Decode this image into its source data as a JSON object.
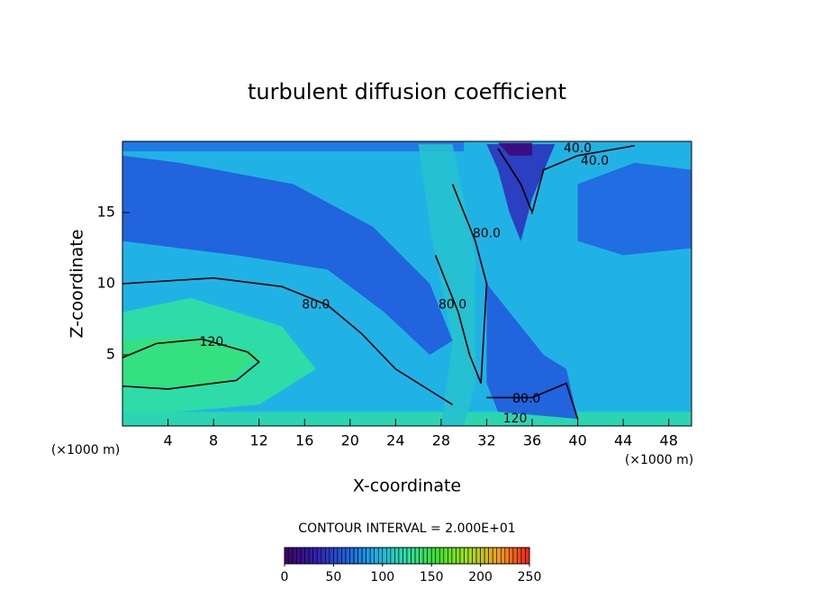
{
  "chart_data": {
    "type": "contour",
    "title": "turbulent diffusion coefficient",
    "x_label": "X-coordinate",
    "y_label": "Z-coordinate",
    "x_unit": "(×1000 m)",
    "footer": "CONTOUR INTERVAL = 2.000E+01",
    "xlim": [
      0,
      50
    ],
    "ylim": [
      0,
      20
    ],
    "xticks": [
      4,
      8,
      12,
      16,
      20,
      24,
      28,
      32,
      36,
      40,
      44,
      48
    ],
    "yticks": [
      5,
      10,
      15
    ],
    "background_value": 95,
    "filled": [
      {
        "value": 60,
        "x": [
          0,
          0,
          10,
          18,
          23,
          27,
          29,
          27,
          22,
          15,
          5,
          0
        ],
        "z": [
          19,
          13,
          12,
          11,
          8,
          5,
          6,
          10,
          14,
          17,
          18.5,
          19
        ]
      },
      {
        "value": 70,
        "x": [
          0,
          0,
          30,
          30
        ],
        "z": [
          20,
          19.3,
          19.3,
          20
        ]
      },
      {
        "value": 65,
        "x": [
          40,
          44,
          50,
          50,
          45,
          40
        ],
        "z": [
          13,
          12,
          12.5,
          18,
          18.5,
          17
        ]
      },
      {
        "value": 120,
        "x": [
          0,
          0,
          50,
          50
        ],
        "z": [
          0,
          1,
          1,
          0
        ]
      },
      {
        "value": 125,
        "x": [
          0,
          0,
          6,
          14,
          17,
          12,
          5,
          0
        ],
        "z": [
          1,
          8,
          9,
          7,
          4,
          1.5,
          1,
          1
        ]
      },
      {
        "value": 135,
        "x": [
          0,
          0,
          6,
          12,
          9,
          3,
          0
        ],
        "z": [
          3,
          6,
          6.3,
          5,
          3,
          2.7,
          3
        ]
      },
      {
        "value": 105,
        "x": [
          26,
          29,
          31,
          31,
          30,
          28,
          29,
          27,
          26
        ],
        "z": [
          19.8,
          19.8,
          12,
          3,
          0,
          0,
          6,
          14,
          19.8
        ]
      },
      {
        "value": 60,
        "x": [
          32,
          34,
          37,
          39,
          40,
          33,
          32
        ],
        "z": [
          10,
          8,
          5,
          4,
          0.5,
          1,
          3
        ]
      },
      {
        "value": 40,
        "x": [
          32,
          38,
          36,
          35,
          34,
          33,
          32
        ],
        "z": [
          19.8,
          19.8,
          16,
          13,
          15,
          18,
          19.8
        ]
      },
      {
        "value": 10,
        "x": [
          33,
          36,
          36,
          34,
          33
        ],
        "z": [
          19.9,
          19.9,
          19,
          19,
          19.9
        ]
      }
    ],
    "contours": [
      {
        "level": 120,
        "x": [
          0,
          3,
          7,
          11,
          12,
          10,
          4,
          0
        ],
        "z": [
          4.8,
          5.8,
          6.1,
          5.2,
          4.5,
          3.2,
          2.6,
          2.8
        ],
        "labels": [
          {
            "text": "120.",
            "x": 8,
            "z": 5.9
          }
        ]
      },
      {
        "level": 80,
        "x": [
          0,
          8,
          14,
          18,
          21,
          24,
          27,
          29
        ],
        "z": [
          10,
          10.4,
          9.8,
          8.5,
          6.5,
          4,
          2.5,
          1.5
        ],
        "labels": [
          {
            "text": "80.0",
            "x": 17,
            "z": 8.5
          }
        ]
      },
      {
        "level": 80,
        "x": [
          27.5,
          28.5,
          29.5,
          30.5,
          31.5,
          32,
          31,
          30,
          29
        ],
        "z": [
          12,
          10,
          8,
          5,
          3,
          10,
          13,
          15,
          17
        ],
        "labels": [
          {
            "text": "80.0",
            "x": 29,
            "z": 8.5
          },
          {
            "text": "80.0",
            "x": 32,
            "z": 13.5
          }
        ]
      },
      {
        "level": 80,
        "x": [
          32,
          34,
          36,
          39,
          40
        ],
        "z": [
          2,
          2,
          2,
          3,
          0.5
        ],
        "labels": [
          {
            "text": "80.0",
            "x": 35.5,
            "z": 1.9
          },
          {
            "text": "120",
            "x": 34.5,
            "z": 0.5
          }
        ]
      },
      {
        "level": 40,
        "x": [
          33,
          35,
          36,
          37,
          40,
          45
        ],
        "z": [
          19.5,
          17,
          15,
          18,
          19,
          19.7
        ],
        "labels": [
          {
            "text": "40.0",
            "x": 40,
            "z": 19.5
          },
          {
            "text": "40.0",
            "x": 41.5,
            "z": 18.6
          }
        ]
      }
    ],
    "colorbar": {
      "lim": [
        0,
        250
      ],
      "ticks": [
        0,
        50,
        100,
        150,
        200,
        250
      ],
      "colormap": [
        "#400060",
        "#3020b0",
        "#2060e0",
        "#20b0e8",
        "#30e0a0",
        "#40e030",
        "#a0e020",
        "#f0a020",
        "#f02010"
      ]
    }
  }
}
